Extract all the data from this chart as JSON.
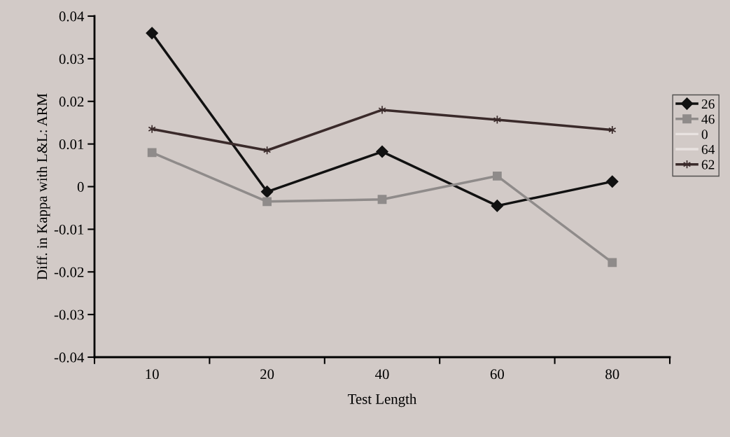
{
  "chart_data": {
    "type": "line",
    "xlabel": "Test Length",
    "ylabel": "Diff. in Kappa with L&L: ARM",
    "categories": [
      "10",
      "20",
      "40",
      "60",
      "80"
    ],
    "series": [
      {
        "name": "26",
        "color": "#111111",
        "marker": "diamond",
        "values": [
          0.036,
          -0.0012,
          0.0082,
          -0.0045,
          0.0012
        ]
      },
      {
        "name": "46",
        "color": "#8f8b8a",
        "marker": "square",
        "values": [
          0.008,
          -0.0035,
          -0.003,
          0.0025,
          -0.0178
        ]
      },
      {
        "name": "0",
        "color": "#e8e2e0",
        "marker": "none",
        "values": [
          null,
          null,
          null,
          null,
          null
        ]
      },
      {
        "name": "64",
        "color": "#e8e2e0",
        "marker": "none",
        "values": [
          null,
          null,
          null,
          null,
          null
        ]
      },
      {
        "name": "62",
        "color": "#3a2a2a",
        "marker": "cross",
        "values": [
          0.0135,
          0.0085,
          0.018,
          0.0157,
          0.0133
        ]
      }
    ],
    "ylim": [
      -0.04,
      0.04
    ],
    "yticks": [
      {
        "value": -0.04,
        "label": "-0.04"
      },
      {
        "value": -0.03,
        "label": "-0.03"
      },
      {
        "value": -0.02,
        "label": "-0.02"
      },
      {
        "value": -0.01,
        "label": "-0.01"
      },
      0,
      0.01,
      0.02,
      0.03,
      0.04
    ],
    "grid": false,
    "legend": "right"
  }
}
